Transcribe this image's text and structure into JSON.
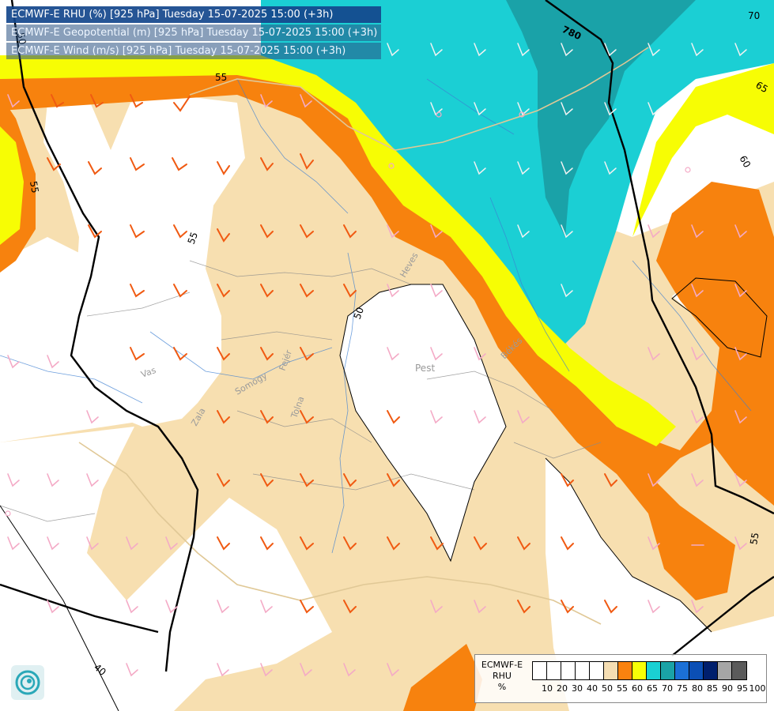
{
  "header": {
    "line1": "ECMWF-E RHU (%) [925 hPa] Tuesday 15-07-2025 15:00 (+3h)",
    "line2": "ECMWF-E Geopotential (m) [925 hPa] Tuesday 15-07-2025 15:00 (+3h)",
    "line3": "ECMWF-E Wind (m/s) [925 hPa] Tuesday 15-07-2025 15:00 (+3h)"
  },
  "map_labels": {
    "contour_780": "780",
    "contour_55_a": "55",
    "contour_55_b": "55",
    "contour_55_c": "55",
    "contour_55_d": "55",
    "contour_60": "60",
    "contour_65": "65",
    "contour_70": "70",
    "contour_50_a": "50",
    "contour_50_b": "50",
    "contour_40": "40",
    "place_pest": "Pest",
    "place_vas": "Vas",
    "place_zala": "Zala",
    "place_somogy": "Somogy",
    "place_tolna": "Tolna",
    "place_fejer": "Fejér",
    "place_heves": "Heves",
    "place_bekes": "Békés"
  },
  "legend": {
    "title_line1": "ECMWF-E",
    "title_line2": "RHU",
    "title_line3": "%",
    "ticks": [
      "10",
      "20",
      "30",
      "40",
      "50",
      "55",
      "60",
      "65",
      "70",
      "75",
      "80",
      "85",
      "90",
      "95",
      "100"
    ],
    "colors": [
      "#ffffff",
      "#ffffff",
      "#ffffff",
      "#ffffff",
      "#ffffff",
      "#f5deb3",
      "#f9820f",
      "#f7ff07",
      "#1ad0d3",
      "#1aa3a6",
      "#1b70d6",
      "#0b4fb5",
      "#001f6d",
      "#a6a6a6",
      "#5b5b5b"
    ]
  },
  "colors": {
    "wheat": "#f7dfb0",
    "orange": "#f7820e",
    "yellow": "#f7fd04",
    "cyan": "#1bcfd4",
    "teal": "#1aa2a8",
    "barb_orange": "#f05a12",
    "barb_pink": "#f4aac6",
    "contour": "#000000"
  }
}
